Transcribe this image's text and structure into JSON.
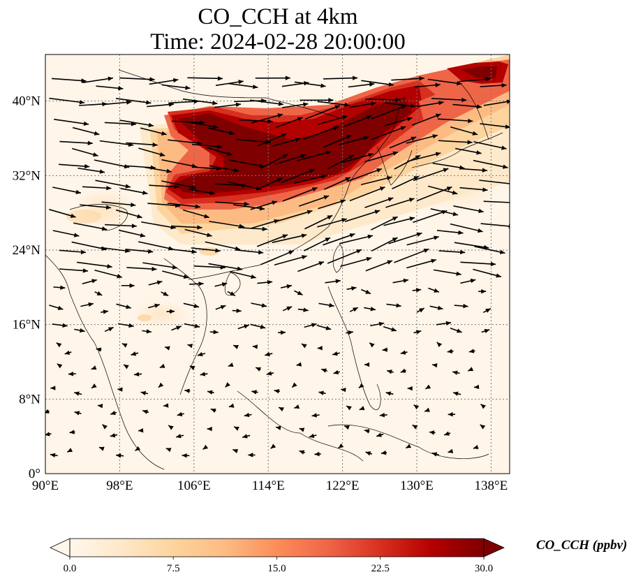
{
  "title_line1": "CO_CCH at 4km",
  "title_line2": "Time: 2024-02-28 20:00:00",
  "map": {
    "lon_range": [
      90,
      140
    ],
    "lat_range": [
      0,
      45
    ],
    "lon_ticks": [
      90,
      98,
      106,
      114,
      122,
      130,
      138
    ],
    "lat_ticks": [
      0,
      8,
      16,
      24,
      32,
      40
    ],
    "lon_tick_labels": [
      "90°E",
      "98°E",
      "106°E",
      "114°E",
      "122°E",
      "130°E",
      "138°E"
    ],
    "lat_tick_labels": [
      "0°",
      "8°N",
      "16°N",
      "24°N",
      "32°N",
      "40°N"
    ],
    "gridlines": "dotted"
  },
  "colorbar": {
    "label": "CO_CCH (ppbv)",
    "min": 0.0,
    "max": 30.0,
    "extend": "both",
    "colormap": "OrRd",
    "tick_values": [
      0.0,
      7.5,
      15.0,
      22.5,
      30.0
    ],
    "tick_labels": [
      "0.0",
      "7.5",
      "15.0",
      "22.5",
      "30.0"
    ],
    "colors": [
      "#fff7ec",
      "#fee8c8",
      "#fdd49e",
      "#fdbb84",
      "#fc8d59",
      "#ef6548",
      "#d7301f",
      "#b30000",
      "#7f0000"
    ]
  },
  "plume": {
    "description_note": "",
    "cores": [
      {
        "lon": 113,
        "lat": 32,
        "value": 30
      },
      {
        "lon": 118,
        "lat": 33,
        "value": 30
      },
      {
        "lon": 106,
        "lat": 30.5,
        "value": 30
      },
      {
        "lon": 108,
        "lat": 37.5,
        "value": 30
      },
      {
        "lon": 124,
        "lat": 36,
        "value": 28
      },
      {
        "lon": 131,
        "lat": 39,
        "value": 22
      },
      {
        "lon": 137,
        "lat": 42.5,
        "value": 26
      }
    ]
  }
}
